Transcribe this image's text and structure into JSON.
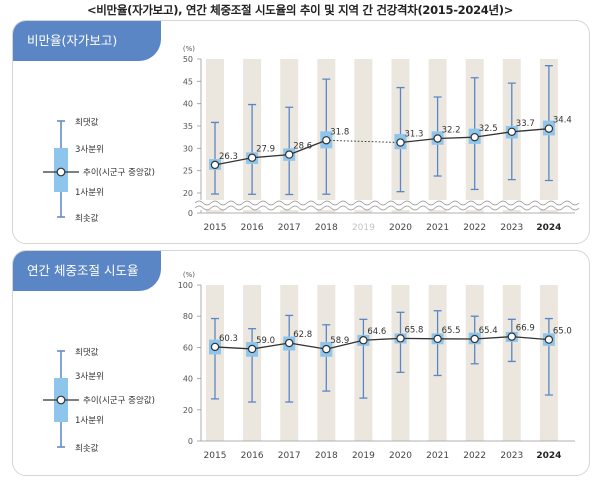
{
  "title": "<비만율(자가보고), 연간 체중조절 시도율의 추이 및 지역 간 건강격차(2015-2024년)>",
  "legend": {
    "max": "최댓값",
    "q3": "3사분위",
    "median": "추이(시군구 중앙값)",
    "q1": "1사분위",
    "min": "최솟값"
  },
  "colors": {
    "tab": "#5b86c6",
    "box": "#8ec5ec",
    "whisker": "#5b86c6",
    "line": "#333333",
    "band": "#ebe7df"
  },
  "chart_data": [
    {
      "type": "box-trend",
      "title": "비만율(자가보고)",
      "unit": "(%)",
      "categories": [
        "2015",
        "2016",
        "2017",
        "2018",
        "2019",
        "2020",
        "2021",
        "2022",
        "2023",
        "2024"
      ],
      "dimmed_category": "2019",
      "highlight_category": "2024",
      "ylim": [
        0,
        50
      ],
      "yticks": [
        0,
        20,
        25,
        30,
        35,
        40,
        45,
        50
      ],
      "axis_break": true,
      "median": [
        26.3,
        27.9,
        28.6,
        31.8,
        null,
        31.3,
        32.2,
        32.5,
        33.7,
        34.4
      ],
      "median_labels": [
        "26.3",
        "27.9",
        "28.6",
        "31.8",
        "",
        "31.3",
        "32.2",
        "32.5",
        "33.7",
        "34.4"
      ],
      "q1": [
        25.2,
        26.5,
        27.2,
        30.0,
        null,
        29.8,
        30.8,
        31.0,
        32.2,
        32.9
      ],
      "q3": [
        27.6,
        29.1,
        30.0,
        33.8,
        null,
        33.2,
        33.8,
        34.4,
        35.0,
        36.2
      ],
      "min": [
        19.0,
        18.7,
        18.5,
        18.8,
        null,
        20.3,
        23.8,
        20.8,
        23.0,
        22.8
      ],
      "max": [
        35.8,
        39.8,
        39.2,
        45.5,
        null,
        43.6,
        41.5,
        45.8,
        44.6,
        48.5
      ],
      "dotted_gap": [
        3,
        5
      ]
    },
    {
      "type": "box-trend",
      "title": "연간 체중조절 시도율",
      "unit": "(%)",
      "categories": [
        "2015",
        "2016",
        "2017",
        "2018",
        "2019",
        "2020",
        "2021",
        "2022",
        "2023",
        "2024"
      ],
      "highlight_category": "2024",
      "ylim": [
        0,
        100
      ],
      "yticks": [
        0,
        20,
        40,
        60,
        80,
        100
      ],
      "median": [
        60.3,
        59.0,
        62.8,
        58.9,
        64.6,
        65.8,
        65.5,
        65.4,
        66.9,
        65.0
      ],
      "median_labels": [
        "60.3",
        "59.0",
        "62.8",
        "58.9",
        "64.6",
        "65.8",
        "65.5",
        "65.4",
        "66.9",
        "65.0"
      ],
      "q1": [
        55.5,
        54.0,
        58.0,
        54.0,
        61.0,
        62.5,
        62.0,
        62.0,
        63.5,
        61.0
      ],
      "q3": [
        65.0,
        63.5,
        67.0,
        63.5,
        68.0,
        69.0,
        69.0,
        69.5,
        70.0,
        69.0
      ],
      "min": [
        27.0,
        25.0,
        25.0,
        32.0,
        27.5,
        44.0,
        42.0,
        49.5,
        51.0,
        29.5
      ],
      "max": [
        78.5,
        72.0,
        80.5,
        74.5,
        78.0,
        82.5,
        83.5,
        80.0,
        78.0,
        78.5
      ]
    }
  ]
}
